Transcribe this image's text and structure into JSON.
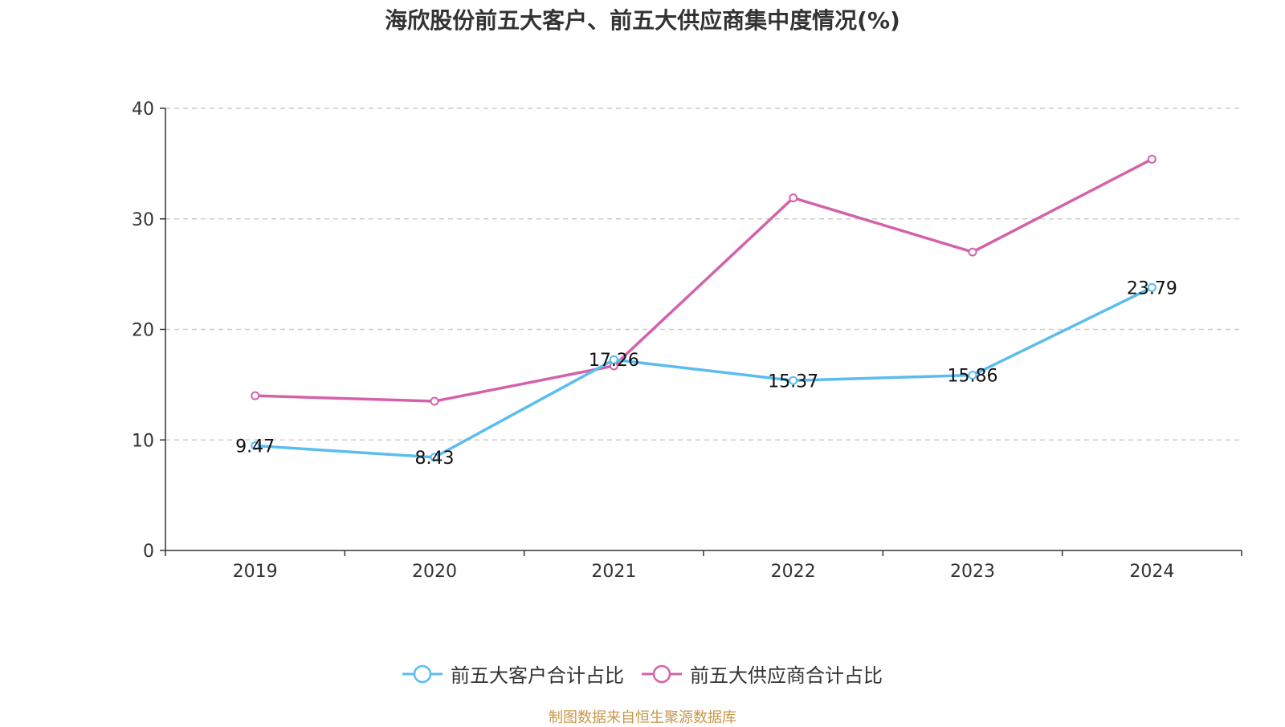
{
  "chart_data": {
    "type": "line",
    "title": "海欣股份前五大客户、前五大供应商集中度情况(%)",
    "categories": [
      "2019",
      "2020",
      "2021",
      "2022",
      "2023",
      "2024"
    ],
    "ylim": [
      0,
      40
    ],
    "yticks": [
      0,
      10,
      20,
      30,
      40
    ],
    "grid": true,
    "legend_position": "bottom",
    "series": [
      {
        "name": "前五大客户合计占比",
        "color": "#5bbcf0",
        "values": [
          9.47,
          8.43,
          17.26,
          15.37,
          15.86,
          23.79
        ],
        "labels": [
          "9.47",
          "8.43",
          "17.26",
          "15.37",
          "15.86",
          "23.79"
        ]
      },
      {
        "name": "前五大供应商合计占比",
        "color": "#d462aa",
        "values": [
          14.0,
          13.5,
          16.7,
          31.9,
          27.0,
          35.4
        ],
        "labels": []
      }
    ]
  },
  "source_note": "制图数据来自恒生聚源数据库"
}
